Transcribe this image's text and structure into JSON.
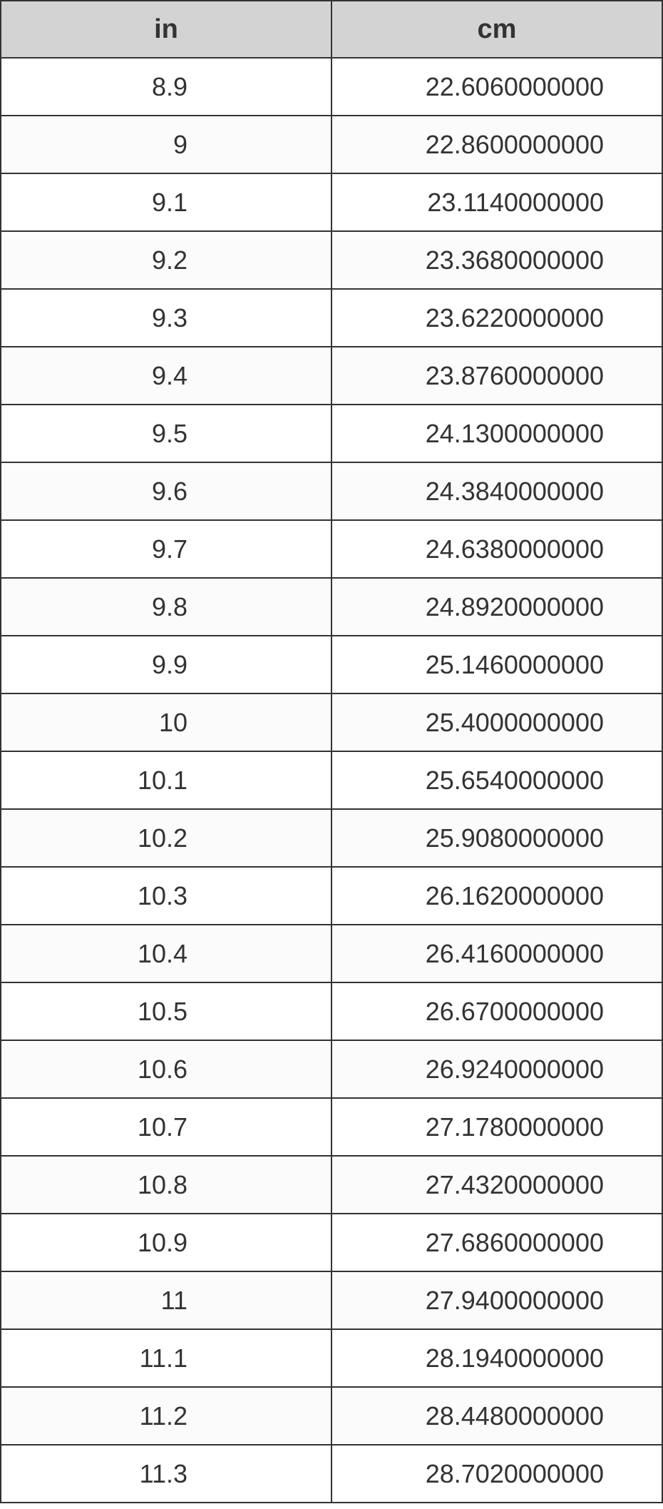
{
  "table": {
    "columns": [
      "in",
      "cm"
    ],
    "rows": [
      [
        "8.9",
        "22.6060000000"
      ],
      [
        "9",
        "22.8600000000"
      ],
      [
        "9.1",
        "23.1140000000"
      ],
      [
        "9.2",
        "23.3680000000"
      ],
      [
        "9.3",
        "23.6220000000"
      ],
      [
        "9.4",
        "23.8760000000"
      ],
      [
        "9.5",
        "24.1300000000"
      ],
      [
        "9.6",
        "24.3840000000"
      ],
      [
        "9.7",
        "24.6380000000"
      ],
      [
        "9.8",
        "24.8920000000"
      ],
      [
        "9.9",
        "25.1460000000"
      ],
      [
        "10",
        "25.4000000000"
      ],
      [
        "10.1",
        "25.6540000000"
      ],
      [
        "10.2",
        "25.9080000000"
      ],
      [
        "10.3",
        "26.1620000000"
      ],
      [
        "10.4",
        "26.4160000000"
      ],
      [
        "10.5",
        "26.6700000000"
      ],
      [
        "10.6",
        "26.9240000000"
      ],
      [
        "10.7",
        "27.1780000000"
      ],
      [
        "10.8",
        "27.4320000000"
      ],
      [
        "10.9",
        "27.6860000000"
      ],
      [
        "11",
        "27.9400000000"
      ],
      [
        "11.1",
        "28.1940000000"
      ],
      [
        "11.2",
        "28.4480000000"
      ],
      [
        "11.3",
        "28.7020000000"
      ]
    ],
    "header_bg": "#d3d3d3",
    "row_alt_bg": "#fbfbfb",
    "row_bg": "#ffffff",
    "border_color": "#333333",
    "text_color": "#333333",
    "header_fontsize": 38,
    "cell_fontsize": 36,
    "header_fontweight": "bold",
    "cell_fontweight": "normal"
  }
}
